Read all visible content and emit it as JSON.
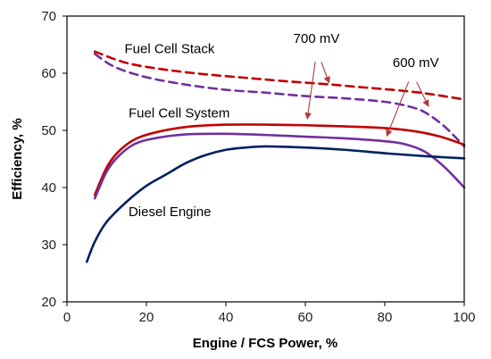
{
  "chart_data": {
    "type": "line",
    "xlabel": "Engine / FCS Power, %",
    "ylabel": "Efficiency, %",
    "xlim": [
      0,
      100
    ],
    "ylim": [
      20,
      70
    ],
    "xticks": [
      0,
      20,
      40,
      60,
      80,
      100
    ],
    "yticks": [
      20,
      30,
      40,
      50,
      60,
      70
    ],
    "grid": false,
    "series": [
      {
        "color": "#C00000",
        "dash": true,
        "points": [
          [
            7,
            63.8
          ],
          [
            15,
            61.8
          ],
          [
            25,
            60.6
          ],
          [
            35,
            59.8
          ],
          [
            45,
            59.2
          ],
          [
            55,
            58.6
          ],
          [
            65,
            58.1
          ],
          [
            75,
            57.5
          ],
          [
            85,
            56.9
          ],
          [
            92,
            56.3
          ],
          [
            100,
            55.4
          ]
        ]
      },
      {
        "color": "#7030A0",
        "dash": true,
        "points": [
          [
            7,
            63.4
          ],
          [
            12,
            61.1
          ],
          [
            20,
            59.3
          ],
          [
            30,
            58.0
          ],
          [
            40,
            57.1
          ],
          [
            50,
            56.6
          ],
          [
            60,
            56.0
          ],
          [
            70,
            55.6
          ],
          [
            80,
            55.0
          ],
          [
            86,
            54.2
          ],
          [
            90,
            53.2
          ],
          [
            95,
            50.7
          ],
          [
            100,
            47.2
          ]
        ]
      },
      {
        "color": "#C00000",
        "dash": false,
        "points": [
          [
            7,
            38.7
          ],
          [
            10,
            43.5
          ],
          [
            13,
            46.3
          ],
          [
            17,
            48.4
          ],
          [
            22,
            49.6
          ],
          [
            30,
            50.6
          ],
          [
            40,
            51.0
          ],
          [
            50,
            51.0
          ],
          [
            60,
            50.9
          ],
          [
            70,
            50.7
          ],
          [
            80,
            50.4
          ],
          [
            88,
            49.8
          ],
          [
            94,
            48.9
          ],
          [
            100,
            47.5
          ]
        ]
      },
      {
        "color": "#7030A0",
        "dash": false,
        "points": [
          [
            7,
            38.1
          ],
          [
            10,
            42.8
          ],
          [
            13,
            45.5
          ],
          [
            17,
            47.6
          ],
          [
            22,
            48.6
          ],
          [
            30,
            49.3
          ],
          [
            40,
            49.4
          ],
          [
            50,
            49.2
          ],
          [
            60,
            48.9
          ],
          [
            70,
            48.6
          ],
          [
            80,
            48.1
          ],
          [
            85,
            47.6
          ],
          [
            90,
            46.3
          ],
          [
            95,
            43.6
          ],
          [
            100,
            40.0
          ]
        ]
      },
      {
        "color": "#002060",
        "dash": false,
        "points": [
          [
            5,
            27.0
          ],
          [
            7,
            30.5
          ],
          [
            10,
            34.0
          ],
          [
            15,
            37.5
          ],
          [
            20,
            40.3
          ],
          [
            25,
            42.3
          ],
          [
            30,
            44.3
          ],
          [
            35,
            45.7
          ],
          [
            40,
            46.6
          ],
          [
            45,
            47.0
          ],
          [
            50,
            47.2
          ],
          [
            60,
            47.0
          ],
          [
            70,
            46.6
          ],
          [
            80,
            46.0
          ],
          [
            90,
            45.5
          ],
          [
            100,
            45.1
          ]
        ]
      }
    ],
    "annotations": [
      {
        "text": "Fuel Cell Stack",
        "x": 14.5,
        "y": 63.5
      },
      {
        "text": "Fuel Cell System",
        "x": 15.5,
        "y": 52.3
      },
      {
        "text": "Diesel Engine",
        "x": 15.5,
        "y": 35.0
      },
      {
        "text": "700 mV",
        "x": 57,
        "y": 65.3
      },
      {
        "text": "600 mV",
        "x": 82,
        "y": 61.1
      }
    ],
    "arrows": [
      {
        "from": [
          62.5,
          62.0
        ],
        "to": [
          60.5,
          52.0
        ]
      },
      {
        "from": [
          64.0,
          62.0
        ],
        "to": [
          66.0,
          58.3
        ]
      },
      {
        "from": [
          86.0,
          58.5
        ],
        "to": [
          80.5,
          49.0
        ]
      },
      {
        "from": [
          88.0,
          58.5
        ],
        "to": [
          91.0,
          54.2
        ]
      }
    ]
  }
}
